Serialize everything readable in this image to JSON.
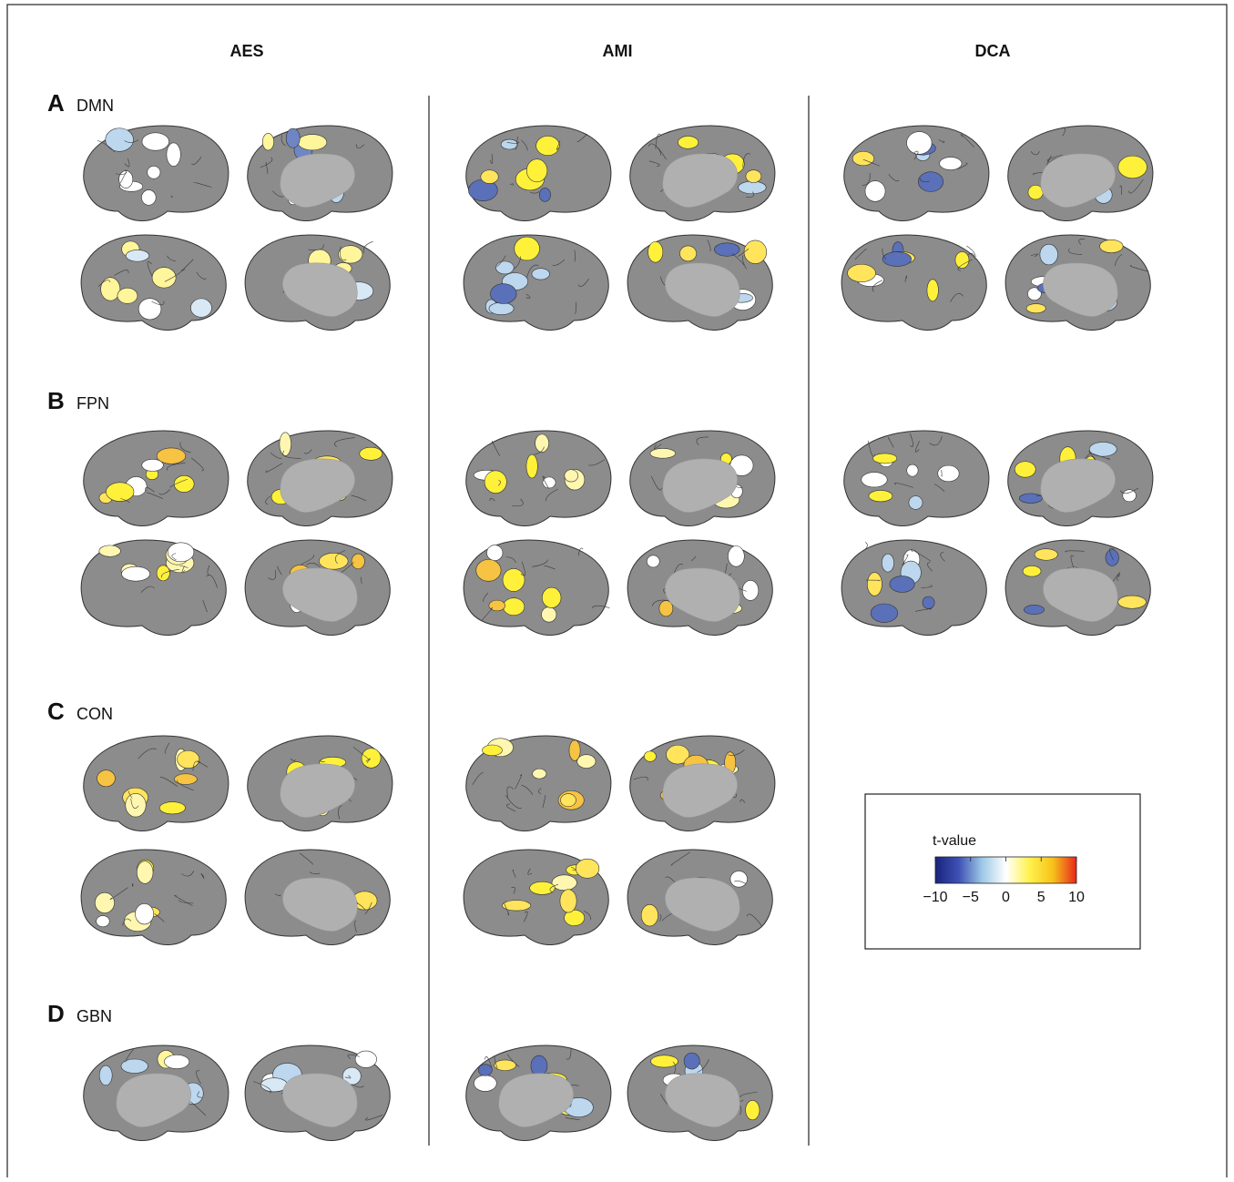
{
  "columns": [
    "AES",
    "AMI",
    "DCA"
  ],
  "rows": [
    {
      "letter": "A",
      "network": "DMN"
    },
    {
      "letter": "B",
      "network": "FPN"
    },
    {
      "letter": "C",
      "network": "CON"
    },
    {
      "letter": "D",
      "network": "GBN"
    }
  ],
  "legend": {
    "title": "t-value",
    "lim": [
      -10,
      10
    ],
    "ticks": [
      {
        "value": -10,
        "label": "−10"
      },
      {
        "value": -5,
        "label": "−5"
      },
      0,
      5,
      10
    ],
    "colors": [
      "#1a237e",
      "#3f51b5",
      "#9ec9e6",
      "#ffffff",
      "#fff24d",
      "#f7c21a",
      "#e8261c"
    ]
  }
}
